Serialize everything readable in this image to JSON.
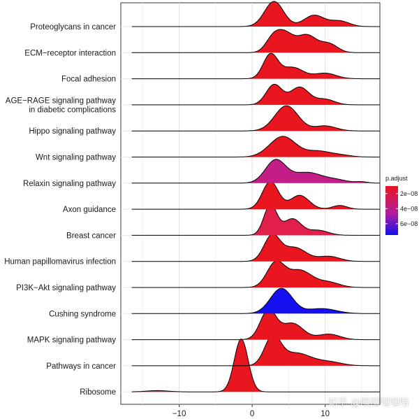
{
  "chart_data": {
    "type": "ridgeline",
    "xlim": [
      -18,
      17.5
    ],
    "x_ticks": [
      -10,
      0,
      10
    ],
    "grid": true,
    "pathways": [
      {
        "name": "Proteoglycans in cancer",
        "p_adjust": 1e-08,
        "color": "#e9161f",
        "range": [
          -16.5,
          17.5
        ],
        "peaks": [
          [
            3,
            1.0,
            1.3
          ],
          [
            8.5,
            0.45,
            1.4
          ],
          [
            12,
            0.22,
            1.3
          ]
        ]
      },
      {
        "name": "ECM−receptor interaction",
        "p_adjust": 1e-08,
        "color": "#e9161f",
        "range": [
          -16.5,
          17.5
        ],
        "peaks": [
          [
            2.8,
            0.5,
            1.0
          ],
          [
            4.5,
            0.72,
            1.2
          ],
          [
            7.5,
            0.68,
            1.3
          ],
          [
            10.5,
            0.35,
            1.2
          ]
        ]
      },
      {
        "name": "Focal adhesion",
        "p_adjust": 1e-08,
        "color": "#e9161f",
        "range": [
          -16.5,
          17.5
        ],
        "peaks": [
          [
            2.5,
            0.95,
            1.0
          ],
          [
            5.5,
            0.45,
            1.5
          ],
          [
            10,
            0.22,
            1.5
          ]
        ]
      },
      {
        "name": "AGE−RAGE signaling pathway\nin diabetic complications",
        "p_adjust": 1e-08,
        "color": "#e9161f",
        "range": [
          -16.5,
          17.5
        ],
        "peaks": [
          [
            3,
            0.8,
            1.1
          ],
          [
            6.5,
            0.7,
            1.3
          ],
          [
            10,
            0.22,
            1.3
          ]
        ]
      },
      {
        "name": "Hippo signaling pathway",
        "p_adjust": 1e-08,
        "color": "#e9161f",
        "range": [
          -16.5,
          17.5
        ],
        "peaks": [
          [
            4.7,
            1.0,
            1.6
          ],
          [
            10,
            0.2,
            1.5
          ]
        ]
      },
      {
        "name": "Wnt signaling pathway",
        "p_adjust": 1e-08,
        "color": "#e9161f",
        "range": [
          -16.5,
          17.5
        ],
        "peaks": [
          [
            4.2,
            0.82,
            1.8
          ],
          [
            9,
            0.22,
            1.6
          ],
          [
            12,
            0.08,
            1.5
          ]
        ]
      },
      {
        "name": "Relaxin signaling pathway",
        "p_adjust": 3.2e-08,
        "color": "#c31e88",
        "range": [
          -16.5,
          17.5
        ],
        "peaks": [
          [
            3.2,
            0.9,
            1.4
          ],
          [
            7.5,
            0.42,
            2.0
          ],
          [
            11.5,
            0.12,
            1.6
          ],
          [
            15,
            0.05,
            0.8
          ]
        ]
      },
      {
        "name": "Axon guidance",
        "p_adjust": 1.2e-08,
        "color": "#e9161f",
        "range": [
          -16.5,
          17.5
        ],
        "peaks": [
          [
            2.5,
            1.1,
            1.1
          ],
          [
            6.5,
            0.55,
            1.3
          ],
          [
            12,
            0.15,
            1.0
          ]
        ]
      },
      {
        "name": "Breast cancer",
        "p_adjust": 2e-08,
        "color": "#e21f4a",
        "range": [
          -16.5,
          17.5
        ],
        "peaks": [
          [
            2.5,
            1.2,
            0.9
          ],
          [
            5.5,
            0.65,
            1.2
          ],
          [
            9,
            0.2,
            1.4
          ]
        ]
      },
      {
        "name": "Human papillomavirus infection",
        "p_adjust": 1e-08,
        "color": "#e9161f",
        "range": [
          -16.5,
          17.5
        ],
        "peaks": [
          [
            2.7,
            1.0,
            1.1
          ],
          [
            5.8,
            0.55,
            1.6
          ],
          [
            10.5,
            0.2,
            1.5
          ]
        ]
      },
      {
        "name": "PI3K−Akt signaling pathway",
        "p_adjust": 1e-08,
        "color": "#e9161f",
        "range": [
          -16.5,
          17.5
        ],
        "peaks": [
          [
            3.2,
            0.95,
            1.2
          ],
          [
            6.5,
            0.68,
            1.7
          ],
          [
            10.5,
            0.2,
            1.5
          ]
        ]
      },
      {
        "name": "Cushing syndrome",
        "p_adjust": 7e-08,
        "color": "#1510f0",
        "range": [
          -16.5,
          17.5
        ],
        "peaks": [
          [
            4,
            1.0,
            1.5
          ],
          [
            9.5,
            0.2,
            2.0
          ]
        ]
      },
      {
        "name": "MAPK signaling pathway",
        "p_adjust": 1e-08,
        "color": "#e9161f",
        "range": [
          -16.5,
          17.5
        ],
        "peaks": [
          [
            2.2,
            1.15,
            1.1
          ],
          [
            5.5,
            0.65,
            1.5
          ],
          [
            10.5,
            0.22,
            1.5
          ]
        ]
      },
      {
        "name": "Pathways in cancer",
        "p_adjust": 1e-08,
        "color": "#e9161f",
        "range": [
          -16.5,
          17.5
        ],
        "peaks": [
          [
            2.8,
            1.1,
            1.1
          ],
          [
            6,
            0.5,
            2.0
          ],
          [
            10.5,
            0.15,
            1.8
          ]
        ]
      },
      {
        "name": "Ribosome",
        "p_adjust": 1e-08,
        "color": "#e9161f",
        "range": [
          -16.5,
          17.5
        ],
        "peaks": [
          [
            -1.5,
            2.1,
            0.95
          ],
          [
            -13,
            0.05,
            1.5
          ]
        ]
      }
    ],
    "legend": {
      "title": "p.adjust",
      "position": "right",
      "ticks": [
        {
          "value": 2e-08,
          "label": "2e−08"
        },
        {
          "value": 4e-08,
          "label": "4e−08"
        },
        {
          "value": 6e-08,
          "label": "6e−08"
        }
      ],
      "range": [
        1e-08,
        7.5e-08
      ],
      "colors": [
        "#e9161f",
        "#1510f0"
      ]
    }
  },
  "watermark": "知乎 @嘿嘿嘿嘿哈"
}
